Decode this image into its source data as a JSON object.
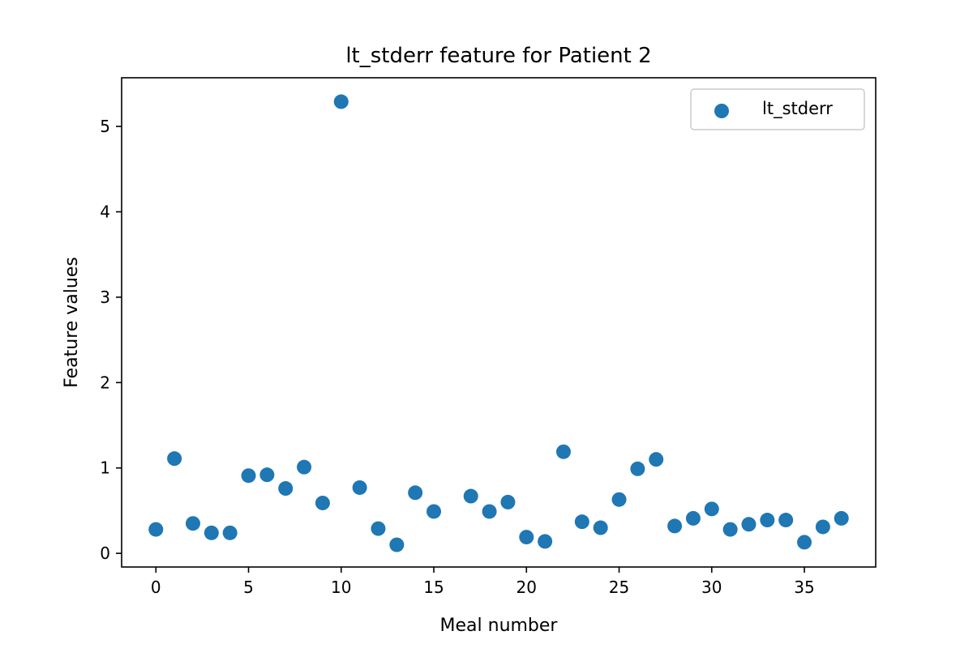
{
  "chart_data": {
    "type": "scatter",
    "title": "lt_stderr feature for Patient 2",
    "xlabel": "Meal number",
    "ylabel": "Feature values",
    "xlim": [
      -1.85,
      38.85
    ],
    "ylim": [
      -0.16,
      5.57
    ],
    "xticks": [
      0,
      5,
      10,
      15,
      20,
      25,
      30,
      35
    ],
    "yticks": [
      0,
      1,
      2,
      3,
      4,
      5
    ],
    "grid": false,
    "legend": {
      "placement": "top-right"
    },
    "series": [
      {
        "name": "lt_stderr",
        "color": "#1f77b4",
        "x": [
          0,
          1,
          2,
          3,
          4,
          5,
          6,
          7,
          8,
          9,
          10,
          11,
          12,
          13,
          14,
          15,
          17,
          18,
          19,
          20,
          21,
          22,
          23,
          24,
          25,
          26,
          27,
          28,
          29,
          30,
          31,
          32,
          33,
          34,
          35,
          36,
          37
        ],
        "y": [
          0.28,
          1.11,
          0.35,
          0.24,
          0.24,
          0.91,
          0.92,
          0.76,
          1.01,
          0.59,
          5.29,
          0.77,
          0.29,
          0.1,
          0.71,
          0.49,
          0.67,
          0.49,
          0.6,
          0.19,
          0.14,
          1.19,
          0.37,
          0.3,
          0.63,
          0.99,
          1.1,
          0.32,
          0.41,
          0.52,
          0.28,
          0.34,
          0.39,
          0.39,
          0.13,
          0.31,
          0.41
        ]
      }
    ]
  }
}
